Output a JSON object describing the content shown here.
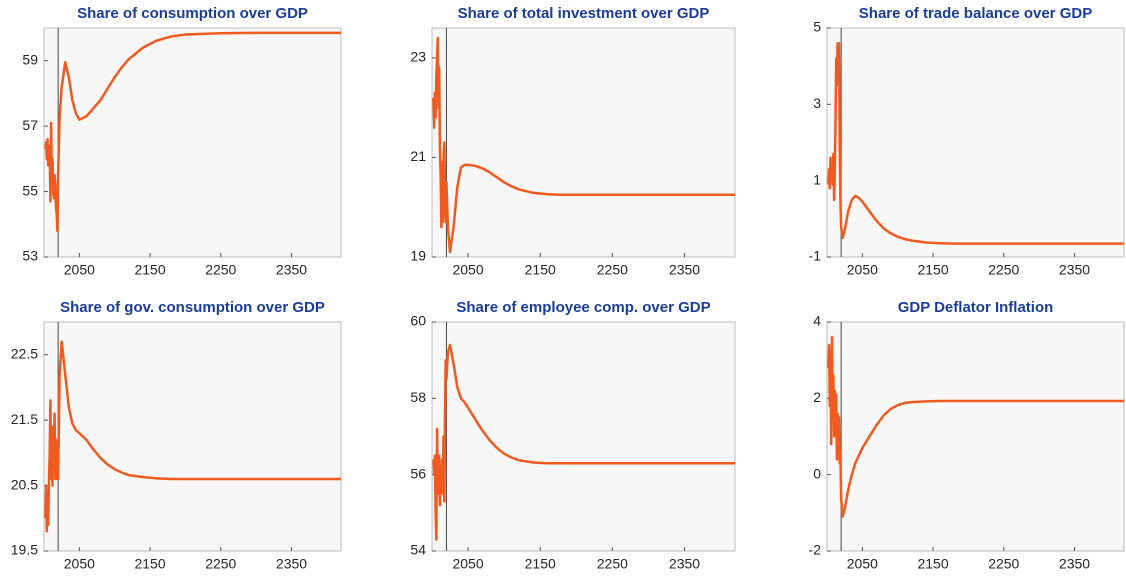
{
  "chart_data": [
    {
      "type": "line",
      "title": "Share of consumption over GDP",
      "color": "#f05a1e",
      "vline": 2020,
      "x": [
        2002,
        2003,
        2004,
        2005,
        2006,
        2007,
        2008,
        2009,
        2010,
        2011,
        2012,
        2013,
        2014,
        2015,
        2016,
        2017,
        2018,
        2019,
        2020,
        2022,
        2025,
        2030,
        2035,
        2040,
        2045,
        2050,
        2060,
        2070,
        2080,
        2090,
        2100,
        2110,
        2120,
        2140,
        2160,
        2180,
        2200,
        2250,
        2300,
        2350,
        2420
      ],
      "values": [
        56.3,
        56.5,
        56.0,
        56.6,
        55.8,
        56.4,
        56.2,
        54.7,
        57.1,
        55.5,
        56.0,
        55.0,
        54.8,
        55.5,
        55.2,
        54.5,
        54.3,
        53.8,
        55.5,
        57.3,
        58.2,
        58.95,
        58.5,
        57.8,
        57.4,
        57.2,
        57.3,
        57.55,
        57.8,
        58.15,
        58.5,
        58.8,
        59.05,
        59.4,
        59.62,
        59.74,
        59.8,
        59.84,
        59.85,
        59.85,
        59.85
      ],
      "xlim": [
        2000,
        2420
      ],
      "xticks": [
        2050,
        2150,
        2250,
        2350
      ],
      "ylim": [
        53,
        60
      ],
      "yticks": [
        53,
        55,
        57,
        59
      ]
    },
    {
      "type": "line",
      "title": "Share of total investment over GDP",
      "color": "#f05a1e",
      "vline": 2020,
      "x": [
        2002,
        2003,
        2004,
        2005,
        2006,
        2007,
        2008,
        2009,
        2010,
        2011,
        2012,
        2013,
        2014,
        2015,
        2016,
        2017,
        2018,
        2019,
        2020,
        2022,
        2025,
        2030,
        2035,
        2040,
        2045,
        2050,
        2060,
        2070,
        2080,
        2090,
        2100,
        2110,
        2120,
        2140,
        2160,
        2180,
        2200,
        2250,
        2300,
        2350,
        2420
      ],
      "values": [
        22.2,
        21.6,
        22.3,
        21.8,
        22.6,
        23.0,
        23.4,
        22.0,
        22.8,
        21.2,
        20.6,
        19.6,
        20.9,
        19.7,
        21.0,
        21.3,
        20.2,
        19.7,
        20.5,
        19.6,
        19.1,
        19.6,
        20.4,
        20.8,
        20.85,
        20.85,
        20.83,
        20.78,
        20.7,
        20.6,
        20.5,
        20.42,
        20.36,
        20.29,
        20.26,
        20.25,
        20.25,
        20.25,
        20.25,
        20.25,
        20.25
      ],
      "xlim": [
        2000,
        2420
      ],
      "xticks": [
        2050,
        2150,
        2250,
        2350
      ],
      "ylim": [
        19,
        23.6
      ],
      "yticks": [
        19,
        21,
        23
      ]
    },
    {
      "type": "line",
      "title": "Share of trade balance over GDP",
      "color": "#f05a1e",
      "vline": 2020,
      "x": [
        2002,
        2003,
        2004,
        2005,
        2006,
        2007,
        2008,
        2009,
        2010,
        2011,
        2012,
        2013,
        2014,
        2015,
        2016,
        2017,
        2018,
        2019,
        2020,
        2022,
        2025,
        2030,
        2035,
        2040,
        2045,
        2050,
        2060,
        2070,
        2080,
        2090,
        2100,
        2110,
        2120,
        2140,
        2160,
        2180,
        2200,
        2250,
        2300,
        2350,
        2420
      ],
      "values": [
        0.9,
        1.3,
        0.8,
        1.6,
        1.0,
        1.4,
        0.9,
        1.7,
        0.5,
        1.2,
        2.5,
        4.2,
        3.5,
        4.6,
        3.8,
        4.6,
        2.0,
        0.5,
        -0.2,
        -0.5,
        -0.3,
        0.2,
        0.5,
        0.6,
        0.55,
        0.45,
        0.2,
        -0.05,
        -0.25,
        -0.38,
        -0.47,
        -0.53,
        -0.57,
        -0.62,
        -0.64,
        -0.65,
        -0.65,
        -0.65,
        -0.65,
        -0.65,
        -0.65
      ],
      "xlim": [
        2000,
        2420
      ],
      "xticks": [
        2050,
        2150,
        2250,
        2350
      ],
      "ylim": [
        -1,
        5
      ],
      "yticks": [
        -1,
        1,
        3,
        5
      ]
    },
    {
      "type": "line",
      "title": "Share of gov. consumption over GDP",
      "color": "#f05a1e",
      "vline": 2020,
      "x": [
        2002,
        2003,
        2004,
        2005,
        2006,
        2007,
        2008,
        2009,
        2010,
        2011,
        2012,
        2013,
        2014,
        2015,
        2016,
        2017,
        2018,
        2019,
        2020,
        2022,
        2025,
        2030,
        2035,
        2040,
        2045,
        2050,
        2060,
        2070,
        2080,
        2090,
        2100,
        2110,
        2120,
        2140,
        2160,
        2180,
        2200,
        2250,
        2300,
        2350,
        2420
      ],
      "values": [
        20.0,
        20.5,
        19.8,
        20.3,
        19.9,
        20.6,
        21.0,
        21.8,
        20.6,
        21.3,
        20.5,
        21.4,
        21.0,
        21.6,
        20.6,
        21.2,
        20.6,
        21.0,
        20.6,
        22.2,
        22.7,
        22.2,
        21.7,
        21.45,
        21.35,
        21.3,
        21.2,
        21.05,
        20.92,
        20.82,
        20.75,
        20.7,
        20.66,
        20.63,
        20.61,
        20.6,
        20.6,
        20.6,
        20.6,
        20.6,
        20.6
      ],
      "xlim": [
        2000,
        2420
      ],
      "xticks": [
        2050,
        2150,
        2250,
        2350
      ],
      "ylim": [
        19.5,
        23
      ],
      "yticks": [
        19.5,
        20.5,
        21.5,
        22.5
      ]
    },
    {
      "type": "line",
      "title": "Share of employee comp. over GDP",
      "color": "#f05a1e",
      "vline": 2020,
      "x": [
        2002,
        2003,
        2004,
        2005,
        2006,
        2007,
        2008,
        2009,
        2010,
        2011,
        2012,
        2013,
        2014,
        2015,
        2016,
        2017,
        2018,
        2019,
        2020,
        2022,
        2025,
        2030,
        2035,
        2040,
        2045,
        2050,
        2060,
        2070,
        2080,
        2090,
        2100,
        2110,
        2120,
        2140,
        2160,
        2180,
        2200,
        2250,
        2300,
        2350,
        2420
      ],
      "values": [
        56.4,
        56.0,
        56.5,
        55.0,
        54.3,
        57.2,
        55.5,
        56.0,
        56.5,
        55.2,
        56.0,
        55.8,
        56.4,
        55.5,
        57.0,
        55.3,
        57.5,
        59.0,
        58.5,
        59.2,
        59.4,
        58.9,
        58.3,
        58.0,
        57.9,
        57.75,
        57.45,
        57.15,
        56.9,
        56.7,
        56.55,
        56.45,
        56.38,
        56.32,
        56.3,
        56.3,
        56.3,
        56.3,
        56.3,
        56.3,
        56.3
      ],
      "xlim": [
        2000,
        2420
      ],
      "xticks": [
        2050,
        2150,
        2250,
        2350
      ],
      "ylim": [
        54,
        60
      ],
      "yticks": [
        54,
        56,
        58,
        60
      ]
    },
    {
      "type": "line",
      "title": "GDP Deflator Inflation",
      "color": "#f05a1e",
      "vline": 2020,
      "x": [
        2002,
        2003,
        2004,
        2005,
        2006,
        2007,
        2008,
        2009,
        2010,
        2011,
        2012,
        2013,
        2014,
        2015,
        2016,
        2017,
        2018,
        2019,
        2020,
        2022,
        2025,
        2030,
        2035,
        2040,
        2045,
        2050,
        2060,
        2070,
        2080,
        2090,
        2100,
        2110,
        2120,
        2140,
        2160,
        2180,
        2200,
        2250,
        2300,
        2350,
        2420
      ],
      "values": [
        2.8,
        3.4,
        1.8,
        3.2,
        0.8,
        3.6,
        1.5,
        2.6,
        1.0,
        2.2,
        1.2,
        2.1,
        0.4,
        1.6,
        0.6,
        1.5,
        0.3,
        0.6,
        -0.6,
        -1.1,
        -0.9,
        -0.4,
        0.0,
        0.3,
        0.5,
        0.7,
        1.0,
        1.3,
        1.55,
        1.72,
        1.82,
        1.88,
        1.9,
        1.92,
        1.93,
        1.93,
        1.93,
        1.93,
        1.93,
        1.93,
        1.93
      ],
      "xlim": [
        2000,
        2420
      ],
      "xticks": [
        2050,
        2150,
        2250,
        2350
      ],
      "ylim": [
        -2,
        4
      ],
      "yticks": [
        -2,
        0,
        2,
        4
      ]
    }
  ]
}
